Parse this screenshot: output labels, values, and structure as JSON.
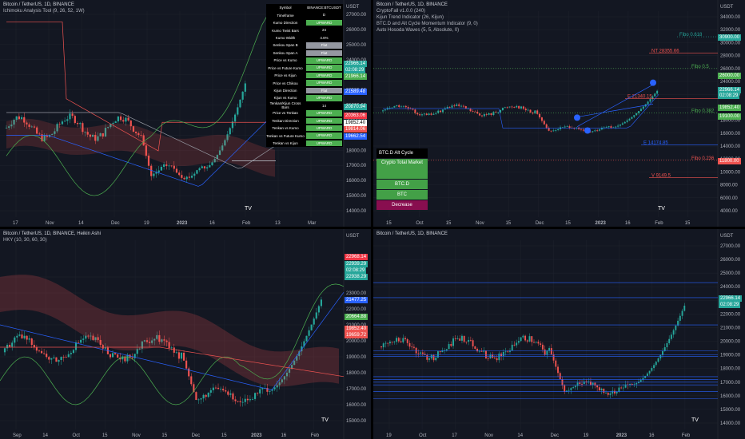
{
  "panes": [
    {
      "id": "ichimoku",
      "header": [
        "Bitcoin / TetherUS, 1D, BINANCE",
        "Ichimoku Analysis Tool (9, 26, 52, 1W)"
      ],
      "x_ticks": [
        "17",
        "Nov",
        "14",
        "Dec",
        "19",
        "2023",
        "16",
        "Feb",
        "13",
        "Mar"
      ],
      "y_unit": "USDT",
      "y_ticks": [
        "27000.00",
        "26000.00",
        "25000.00",
        "24000.00",
        "23000.00",
        "22000.00",
        "21000.00",
        "20000.00",
        "19000.00",
        "18000.00",
        "17000.00",
        "16000.00",
        "15000.00",
        "14000.00"
      ],
      "tags": [
        {
          "text": "22966.14",
          "color": "#26a69a"
        },
        {
          "text": "02:08:29",
          "color": "#26a69a"
        },
        {
          "text": "21966.14",
          "color": "#4caf50"
        },
        {
          "text": "21589.48",
          "color": "#2962ff"
        },
        {
          "text": "20870.94",
          "color": "#26a69a"
        },
        {
          "text": "20363.06",
          "color": "#f23645"
        },
        {
          "text": "19852.40",
          "color": "#ffffff"
        },
        {
          "text": "19814.06",
          "color": "#ef5350"
        },
        {
          "text": "19662.54",
          "color": "#2962ff"
        }
      ],
      "table": [
        {
          "label": "Symbol",
          "value": "BINANCE:BTCUSDT",
          "color": "#000000"
        },
        {
          "label": "Timeframe",
          "value": "D",
          "color": "#000000"
        },
        {
          "label": "Kumo Direction",
          "value": "UPWARD",
          "color": "#4caf50"
        },
        {
          "label": "Kumo Twist Bars",
          "value": "24",
          "color": "#000000"
        },
        {
          "label": "Kumo Width",
          "value": "4.6%",
          "color": "#000000"
        },
        {
          "label": "Senkou Span B",
          "value": "Flat",
          "color": "#9598a1"
        },
        {
          "label": "Senkou Span A",
          "value": "Flat",
          "color": "#9598a1"
        },
        {
          "label": "Price vs Kumo",
          "value": "UPWARD",
          "color": "#4caf50"
        },
        {
          "label": "Price vs Future Kumo",
          "value": "UPWARD",
          "color": "#4caf50"
        },
        {
          "label": "Price vs Kijun",
          "value": "UPWARD",
          "color": "#4caf50"
        },
        {
          "label": "Price vs Chikou",
          "value": "UPWARD",
          "color": "#4caf50"
        },
        {
          "label": "Kijun Direction",
          "value": "Flat",
          "color": "#9598a1"
        },
        {
          "label": "Kijun vs Kumo",
          "value": "UPWARD",
          "color": "#4caf50"
        },
        {
          "label": "Tenkan/Kijun Cross Bars",
          "value": "14",
          "color": "#000000"
        },
        {
          "label": "Price vs Tenkan",
          "value": "UPWARD",
          "color": "#4caf50"
        },
        {
          "label": "Tenkan Direction",
          "value": "UPWARD",
          "color": "#4caf50"
        },
        {
          "label": "Tenkan vs Kumo",
          "value": "UPWARD",
          "color": "#4caf50"
        },
        {
          "label": "Tenkan vs Future Kumo",
          "value": "UPWARD",
          "color": "#4caf50"
        },
        {
          "label": "Tenkan vs Kijun",
          "value": "UPWARD",
          "color": "#4caf50"
        }
      ]
    },
    {
      "id": "cryptofall",
      "header": [
        "Bitcoin / TetherUS, 1D, BINANCE",
        "CryptoFall v1.0.0 (240)",
        "Kijun Trend Indicator (26, Kijun)",
        "BTC.D and Alt Cycle Momentum Indicator (9, 0)",
        "Auto Hosoda Waves (5, 5, Absolute, 0)"
      ],
      "x_ticks": [
        "15",
        "Oct",
        "15",
        "Nov",
        "15",
        "Dec",
        "15",
        "2023",
        "16",
        "Feb",
        "15"
      ],
      "y_unit": "USDT",
      "y_ticks": [
        "34000.00",
        "32000.00",
        "30000.00",
        "28000.00",
        "26000.00",
        "24000.00",
        "22000.00",
        "20000.00",
        "18000.00",
        "16000.00",
        "14000.00",
        "12000.00",
        "10000.00",
        "8000.00",
        "6000.00",
        "4000.00"
      ],
      "levels": [
        {
          "label": "Fibo 0.618",
          "color": "#26a69a"
        },
        {
          "label": "NT 28355.66",
          "color": "#ef5350"
        },
        {
          "label": "Fibo 0.5",
          "color": "#4caf50"
        },
        {
          "label": "E 21340.15",
          "color": "#ef5350"
        },
        {
          "label": "Fibo 0.382",
          "color": "#4caf50"
        },
        {
          "label": "E 14174.85",
          "color": "#2962ff"
        },
        {
          "label": "Fibo 0.236",
          "color": "#ef5350"
        },
        {
          "label": "V 9149.5",
          "color": "#ef5350"
        }
      ],
      "tags": [
        {
          "text": "30900.00",
          "color": "#26a69a"
        },
        {
          "text": "26000.00",
          "color": "#4caf50"
        },
        {
          "text": "22966.14",
          "color": "#26a69a"
        },
        {
          "text": "02:08:29",
          "color": "#26a69a"
        },
        {
          "text": "19852.40",
          "color": "#4caf50"
        },
        {
          "text": "19100.00",
          "color": "#4caf50"
        },
        {
          "text": "11800.00",
          "color": "#ef5350"
        }
      ],
      "cycle": {
        "title": "BTC.D Alt Cycle",
        "boxes": [
          {
            "text": "Crypto Total Market",
            "color": "#43a047"
          },
          {
            "text": "BTC.D",
            "color": "#43a047"
          },
          {
            "text": "BTC",
            "color": "#43a047"
          },
          {
            "text": "Decrease",
            "color": "#880e4f"
          }
        ]
      }
    },
    {
      "id": "heikin",
      "header": [
        "Bitcoin / TetherUS, 1D, BINANCE, Heikin Ashi",
        "HKY (10, 30, 60, 30)"
      ],
      "x_ticks": [
        "Sep",
        "14",
        "Oct",
        "15",
        "Nov",
        "15",
        "Dec",
        "15",
        "2023",
        "16",
        "Feb"
      ],
      "y_unit": "USDT",
      "y_ticks": [
        "24000.00",
        "23000.00",
        "22000.00",
        "21000.00",
        "20000.00",
        "19000.00",
        "18000.00",
        "17000.00",
        "16000.00",
        "15000.00"
      ],
      "tags": [
        {
          "text": "22968.14",
          "color": "#f23645"
        },
        {
          "text": "22939.29",
          "color": "#26a69a"
        },
        {
          "text": "02:08:29",
          "color": "#26a69a"
        },
        {
          "text": "22938.29",
          "color": "#26a69a"
        },
        {
          "text": "21477.25",
          "color": "#2962ff"
        },
        {
          "text": "20664.88",
          "color": "#4caf50"
        },
        {
          "text": "19852.40",
          "color": "#ef5350"
        },
        {
          "text": "19659.72",
          "color": "#ef5350"
        }
      ]
    },
    {
      "id": "horizontal",
      "header": [
        "Bitcoin / TetherUS, 1D, BINANCE"
      ],
      "x_ticks": [
        "19",
        "Oct",
        "17",
        "Nov",
        "14",
        "Dec",
        "19",
        "2023",
        "16",
        "Feb"
      ],
      "y_unit": "USDT",
      "y_ticks": [
        "27000.00",
        "26000.00",
        "25000.00",
        "24000.00",
        "23000.00",
        "22000.00",
        "21000.00",
        "20000.00",
        "19000.00",
        "18000.00",
        "17000.00",
        "16000.00",
        "15000.00",
        "14000.00"
      ],
      "tags": [
        {
          "text": "22966.14",
          "color": "#26a69a"
        },
        {
          "text": "02:08:29",
          "color": "#26a69a"
        }
      ]
    }
  ],
  "logo_text": "TV"
}
